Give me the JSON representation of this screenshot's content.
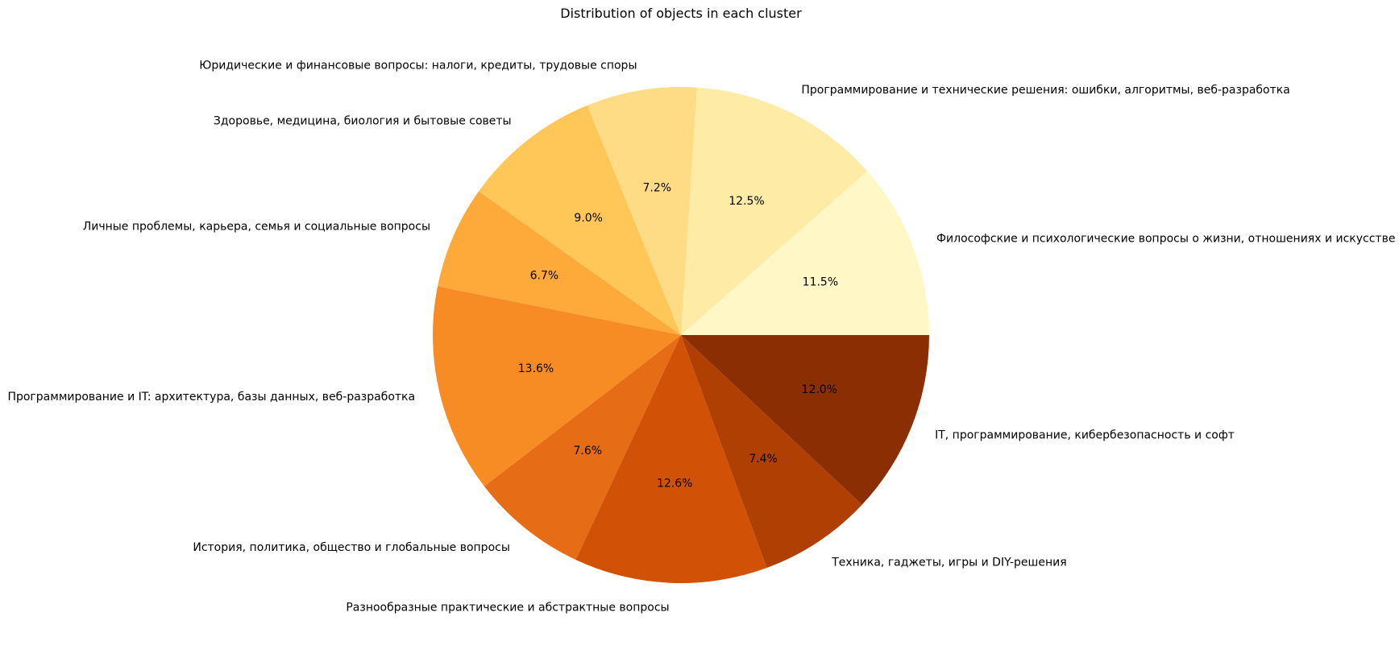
{
  "chart_data": {
    "type": "pie",
    "title": "Distribution of objects in each cluster",
    "start_angle_deg": 0,
    "direction": "counterclockwise",
    "slices": [
      {
        "label": "Философские и психологические вопросы о жизни, отношениях и искусстве",
        "value": 11.5,
        "pct_label": "11.5%",
        "color": "#fff7c5"
      },
      {
        "label": "Программирование и технические решения: ошибки, алгоритмы, веб-разработка",
        "value": 12.5,
        "pct_label": "12.5%",
        "color": "#feeba6"
      },
      {
        "label": "Юридические и финансовые вопросы: налоги, кредиты, трудовые споры",
        "value": 7.2,
        "pct_label": "7.2%",
        "color": "#fedc86"
      },
      {
        "label": "Здоровье, медицина, биология и бытовые советы",
        "value": 9.0,
        "pct_label": "9.0%",
        "color": "#fec758"
      },
      {
        "label": "Личные проблемы, карьера, семья и социальные вопросы",
        "value": 6.7,
        "pct_label": "6.7%",
        "color": "#fdaa3a"
      },
      {
        "label": "Программирование и IT: архитектура, базы данных, веб-разработка",
        "value": 13.6,
        "pct_label": "13.6%",
        "color": "#f78b24"
      },
      {
        "label": "История, политика, общество и глобальные вопросы",
        "value": 7.6,
        "pct_label": "7.6%",
        "color": "#e76c16"
      },
      {
        "label": "Разнообразные практические и абстрактные вопросы",
        "value": 12.6,
        "pct_label": "12.6%",
        "color": "#d15106"
      },
      {
        "label": "Техника, гаджеты, игры и DIY-решения",
        "value": 7.4,
        "pct_label": "7.4%",
        "color": "#b03f04"
      },
      {
        "label": "IT, программирование, кибербезопасность и софт",
        "value": 12.0,
        "pct_label": "12.0%",
        "color": "#8c2e04"
      }
    ]
  }
}
